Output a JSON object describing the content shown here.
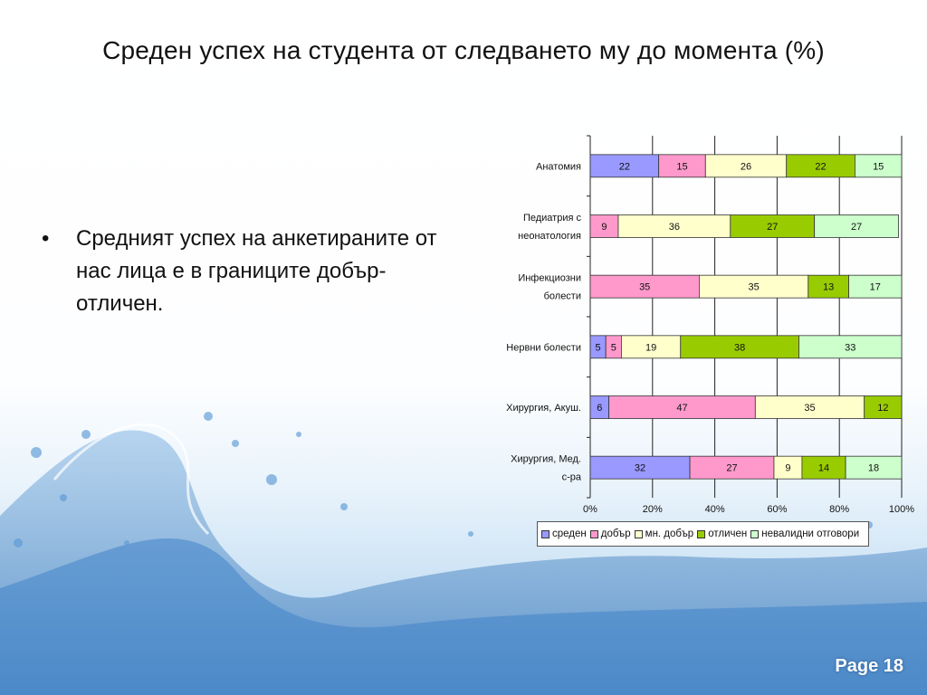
{
  "slide": {
    "title": "Среден успех на студента от следването му до момента (%)",
    "bullet_symbol": "•",
    "bullet_text": "Средният успех на анкетираните от нас лица е в границите добър-отличен.",
    "page_label": "Page 18"
  },
  "chart_data": {
    "type": "bar",
    "orientation": "horizontal",
    "stacked": "percent",
    "categories": [
      "Анатомия",
      "Педиатрия с неонатология",
      "Инфекциозни болести",
      "Нервни болести",
      "Хирургия, Акуш.",
      "Хирургия, Мед. с-ра"
    ],
    "series": [
      {
        "name": "среден",
        "color": "#9999ff",
        "values": [
          22,
          0,
          0,
          5,
          6,
          32
        ]
      },
      {
        "name": "добър",
        "color": "#ff99cc",
        "values": [
          15,
          9,
          35,
          5,
          47,
          27
        ]
      },
      {
        "name": "мн. добър",
        "color": "#ffffcc",
        "values": [
          26,
          36,
          35,
          19,
          35,
          9
        ]
      },
      {
        "name": "отличен",
        "color": "#99cc00",
        "values": [
          22,
          27,
          13,
          38,
          12,
          14
        ]
      },
      {
        "name": "невалидни отговори",
        "color": "#ccffcc",
        "values": [
          15,
          27,
          17,
          33,
          0,
          18
        ]
      }
    ],
    "xlim": [
      0,
      100
    ],
    "x_ticks": [
      "0%",
      "20%",
      "40%",
      "60%",
      "80%",
      "100%"
    ],
    "grid": "vertical",
    "legend": "bottom",
    "data_labels": true
  }
}
